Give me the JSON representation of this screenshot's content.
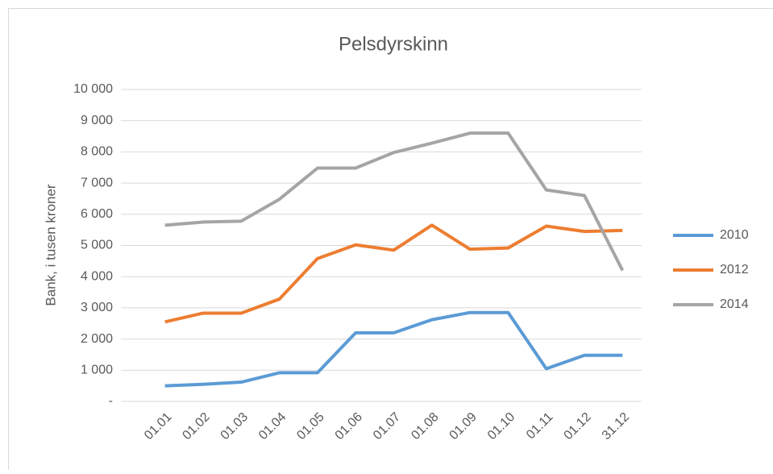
{
  "chart_data": {
    "type": "line",
    "title": "Pelsdyrskinn",
    "y_label": "Bank, i tusen kroner",
    "categories": [
      "01.01",
      "01.02",
      "01.03",
      "01.04",
      "01.05",
      "01.06",
      "01.07",
      "01.08",
      "01.09",
      "01.10",
      "01.11",
      "01.12",
      "31.12"
    ],
    "series": [
      {
        "name": "2010",
        "color": "#5b9bd5",
        "values": [
          500,
          550,
          620,
          920,
          920,
          2200,
          2200,
          2620,
          2850,
          2850,
          1050,
          1480,
          1480
        ]
      },
      {
        "name": "2012",
        "color": "#ed7d31",
        "values": [
          2550,
          2830,
          2830,
          3280,
          4580,
          5020,
          4850,
          5650,
          4880,
          4920,
          5620,
          5450,
          5480
        ]
      },
      {
        "name": "2014",
        "color": "#a5a5a5",
        "values": [
          5650,
          5750,
          5780,
          6480,
          7480,
          7480,
          7980,
          8280,
          8600,
          8600,
          6780,
          6600,
          4200
        ]
      }
    ],
    "ylim": [
      0,
      10000
    ],
    "yticks": [
      {
        "value": 0,
        "label": "-"
      },
      {
        "value": 1000,
        "label": "1 000"
      },
      {
        "value": 2000,
        "label": "2 000"
      },
      {
        "value": 3000,
        "label": "3 000"
      },
      {
        "value": 4000,
        "label": "4 000"
      },
      {
        "value": 5000,
        "label": "5 000"
      },
      {
        "value": 6000,
        "label": "6 000"
      },
      {
        "value": 7000,
        "label": "7 000"
      },
      {
        "value": 8000,
        "label": "8 000"
      },
      {
        "value": 9000,
        "label": "9 000"
      },
      {
        "value": 10000,
        "label": "10 000"
      }
    ],
    "grid": true,
    "legend": "right"
  }
}
